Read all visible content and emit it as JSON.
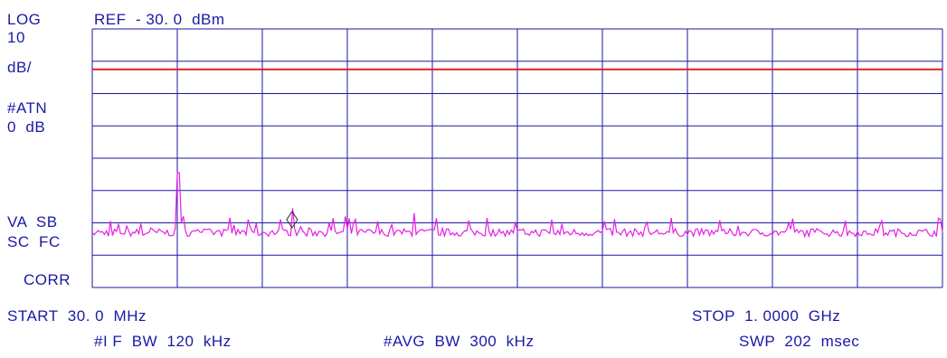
{
  "header": {
    "scale_mode": "LOG",
    "scale_value": "10",
    "scale_unit": "dB/",
    "ref_level": "REF  - 30. 0  dBm"
  },
  "side_labels": {
    "attenuation_label": "#ATN",
    "attenuation_value": "0  dB",
    "video_avg_label": "VA  SB",
    "scale_fc_label": "SC  FC",
    "corr_label": "CORR"
  },
  "footer": {
    "start": "START  30. 0  MHz",
    "stop": "STOP  1. 0000  GHz",
    "if_bw": "#I F  BW  120  kHz",
    "avg_bw": "#AVG  BW  300  kHz",
    "sweep": "SWP  202  msec"
  },
  "colors": {
    "grid": "#1a1aa6",
    "trace": "#e61ee6",
    "threshold": "#e62020",
    "text": "#1a1aa6"
  },
  "chart_data": {
    "type": "line",
    "x_start_mhz": 30.0,
    "x_stop_mhz": 1000.0,
    "ref_level_dbm": -30.0,
    "db_per_div": 10,
    "divisions_x": 10,
    "divisions_y": 8,
    "ylim": [
      -110,
      -30
    ],
    "threshold_dbm": -42.5,
    "marker": {
      "freq_mhz": 258.0,
      "level_dbm": -89.0
    },
    "noise_floor_dbm": -93.0,
    "spikes": [
      {
        "freq_mhz": 128.0,
        "level_dbm": -74.5
      },
      {
        "freq_mhz": 258.0,
        "level_dbm": -85.5
      },
      {
        "freq_mhz": 318.0,
        "level_dbm": -88.0
      },
      {
        "freq_mhz": 355.0,
        "level_dbm": -89.5
      },
      {
        "freq_mhz": 398.0,
        "level_dbm": -87.0
      },
      {
        "freq_mhz": 480.0,
        "level_dbm": -88.5
      },
      {
        "freq_mhz": 555.0,
        "level_dbm": -89.0
      },
      {
        "freq_mhz": 615.0,
        "level_dbm": -89.5
      }
    ]
  }
}
